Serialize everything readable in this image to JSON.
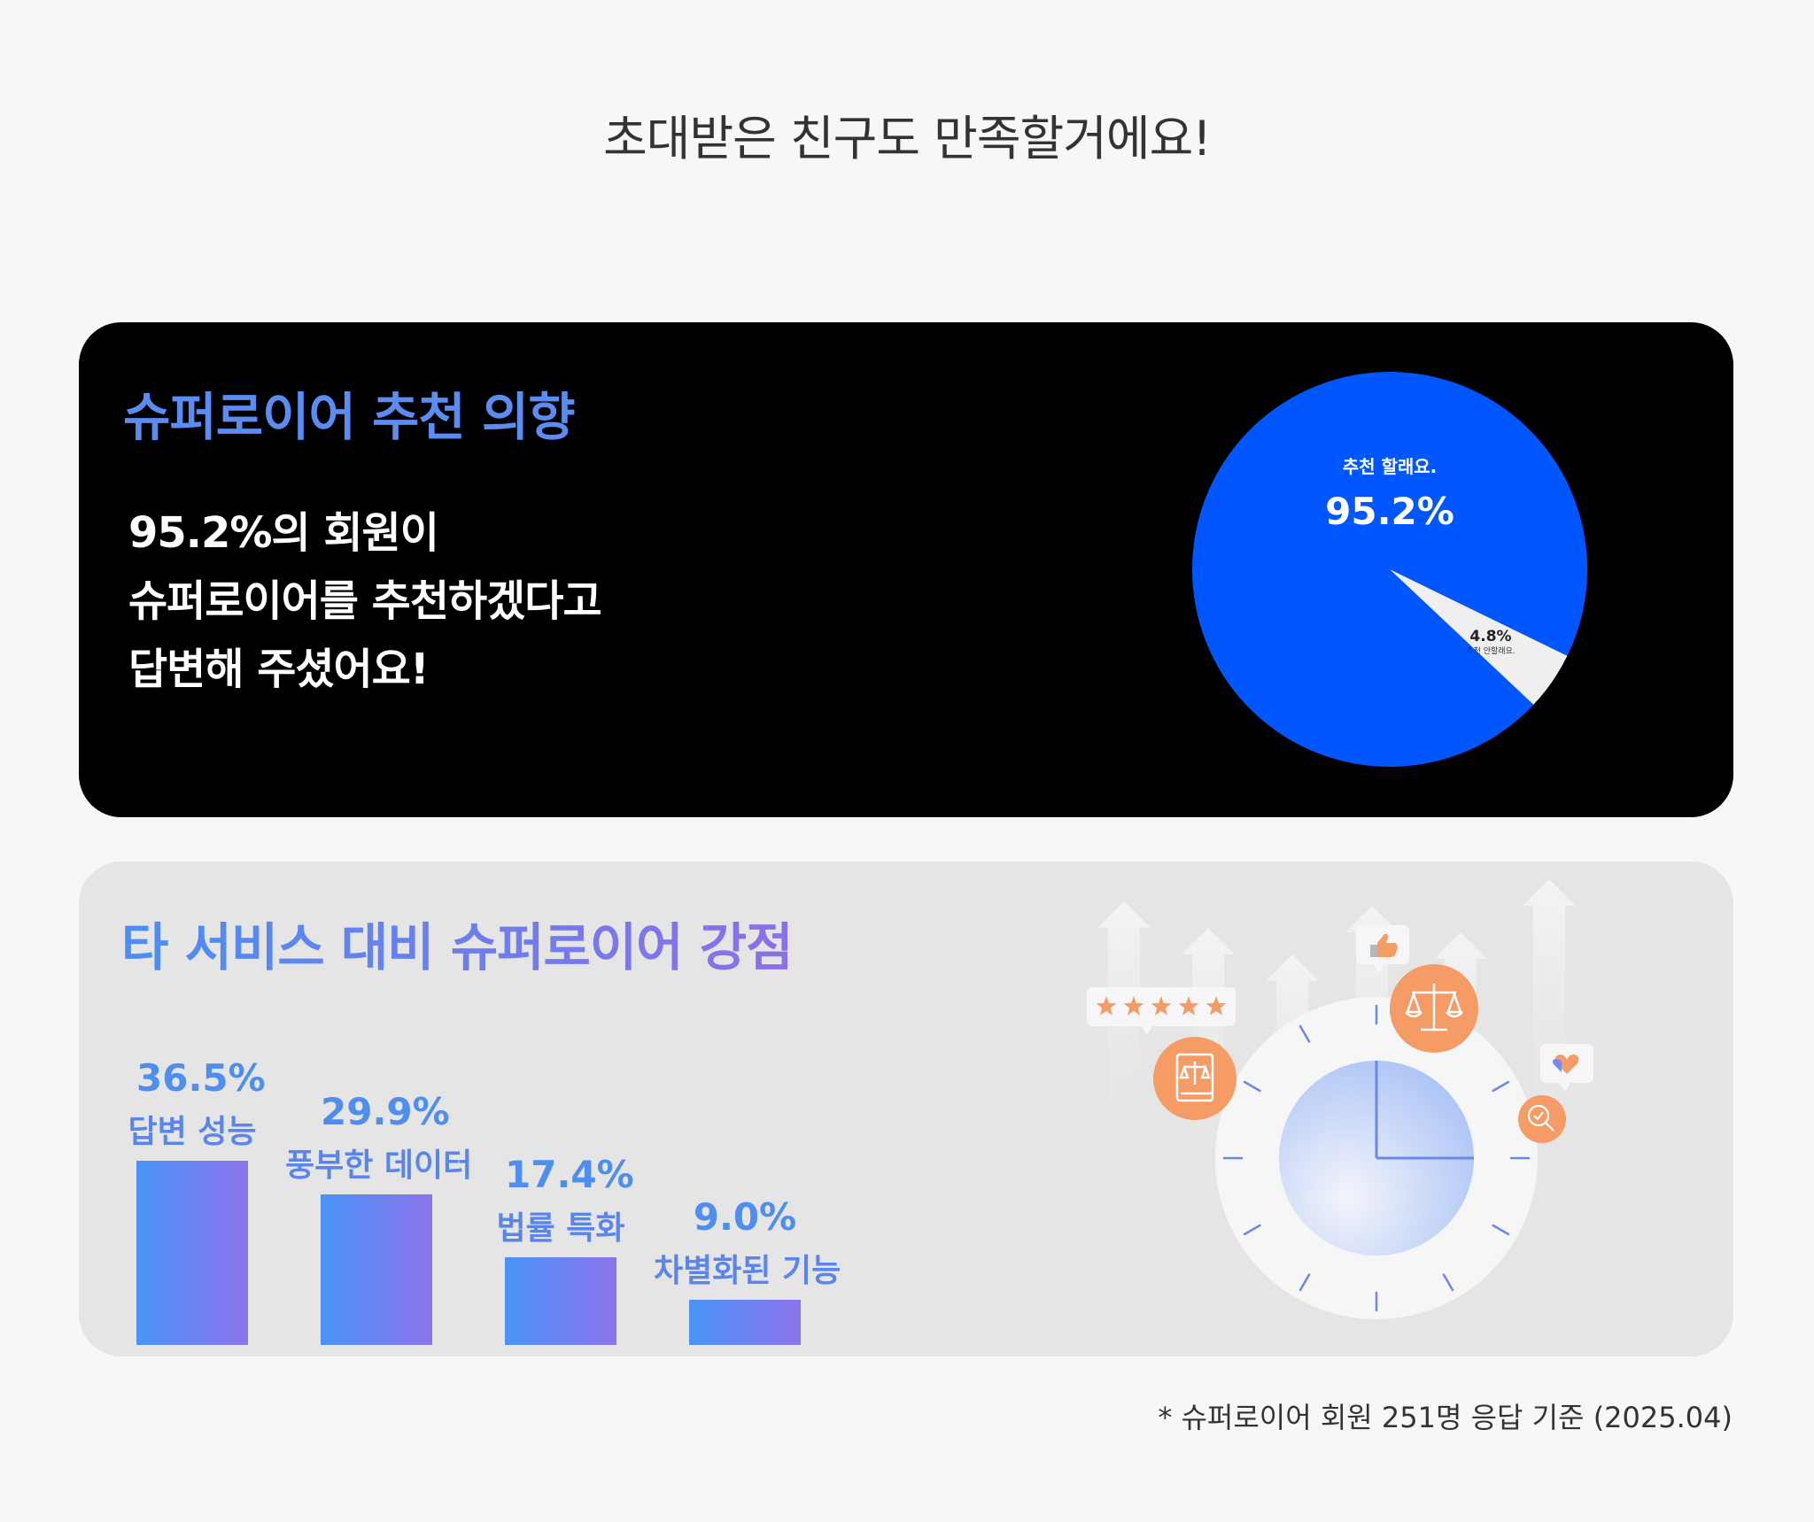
{
  "headline": "초대받은 친구도 만족할거에요!",
  "recommend": {
    "title": "슈퍼로이어 추천 의향",
    "desc_lines": [
      "95.2%의 회원이",
      "슈퍼로이어를 추천하겠다고",
      "답변해 주셨어요!"
    ]
  },
  "strengths": {
    "title": "타 서비스 대비 슈퍼로이어 강점"
  },
  "footnote": "* 슈퍼로이어 회원 251명 응답 기준 (2025.04)",
  "colors": {
    "pie_main": "#0057ff",
    "pie_minor": "#efefef",
    "accent_blue": "#4d8ef0",
    "accent_purple": "#8c6fe8",
    "icon_orange": "#f59b66"
  },
  "chart_data": [
    {
      "type": "pie",
      "slices": [
        {
          "label": "추천 할래요.",
          "value": 95.2,
          "value_text": "95.2%"
        },
        {
          "label": "추천 안할래요.",
          "value": 4.8,
          "value_text": "4.8%"
        }
      ]
    },
    {
      "type": "bar",
      "categories": [
        "답변 성능",
        "풍부한 데이터",
        "법률 특화",
        "차별화된 기능"
      ],
      "values": [
        36.5,
        29.9,
        17.4,
        9.0
      ],
      "value_labels": [
        "36.5%",
        "29.9%",
        "17.4%",
        "9.0%"
      ],
      "ylim": [
        0,
        36.5
      ]
    }
  ],
  "illustration": {
    "icons": [
      "five-star-rating-icon",
      "thumbs-up-icon",
      "scales-of-justice-icon",
      "law-book-icon",
      "heart-chat-icon",
      "magnifier-check-icon",
      "clock-icon",
      "up-arrows-background"
    ]
  }
}
